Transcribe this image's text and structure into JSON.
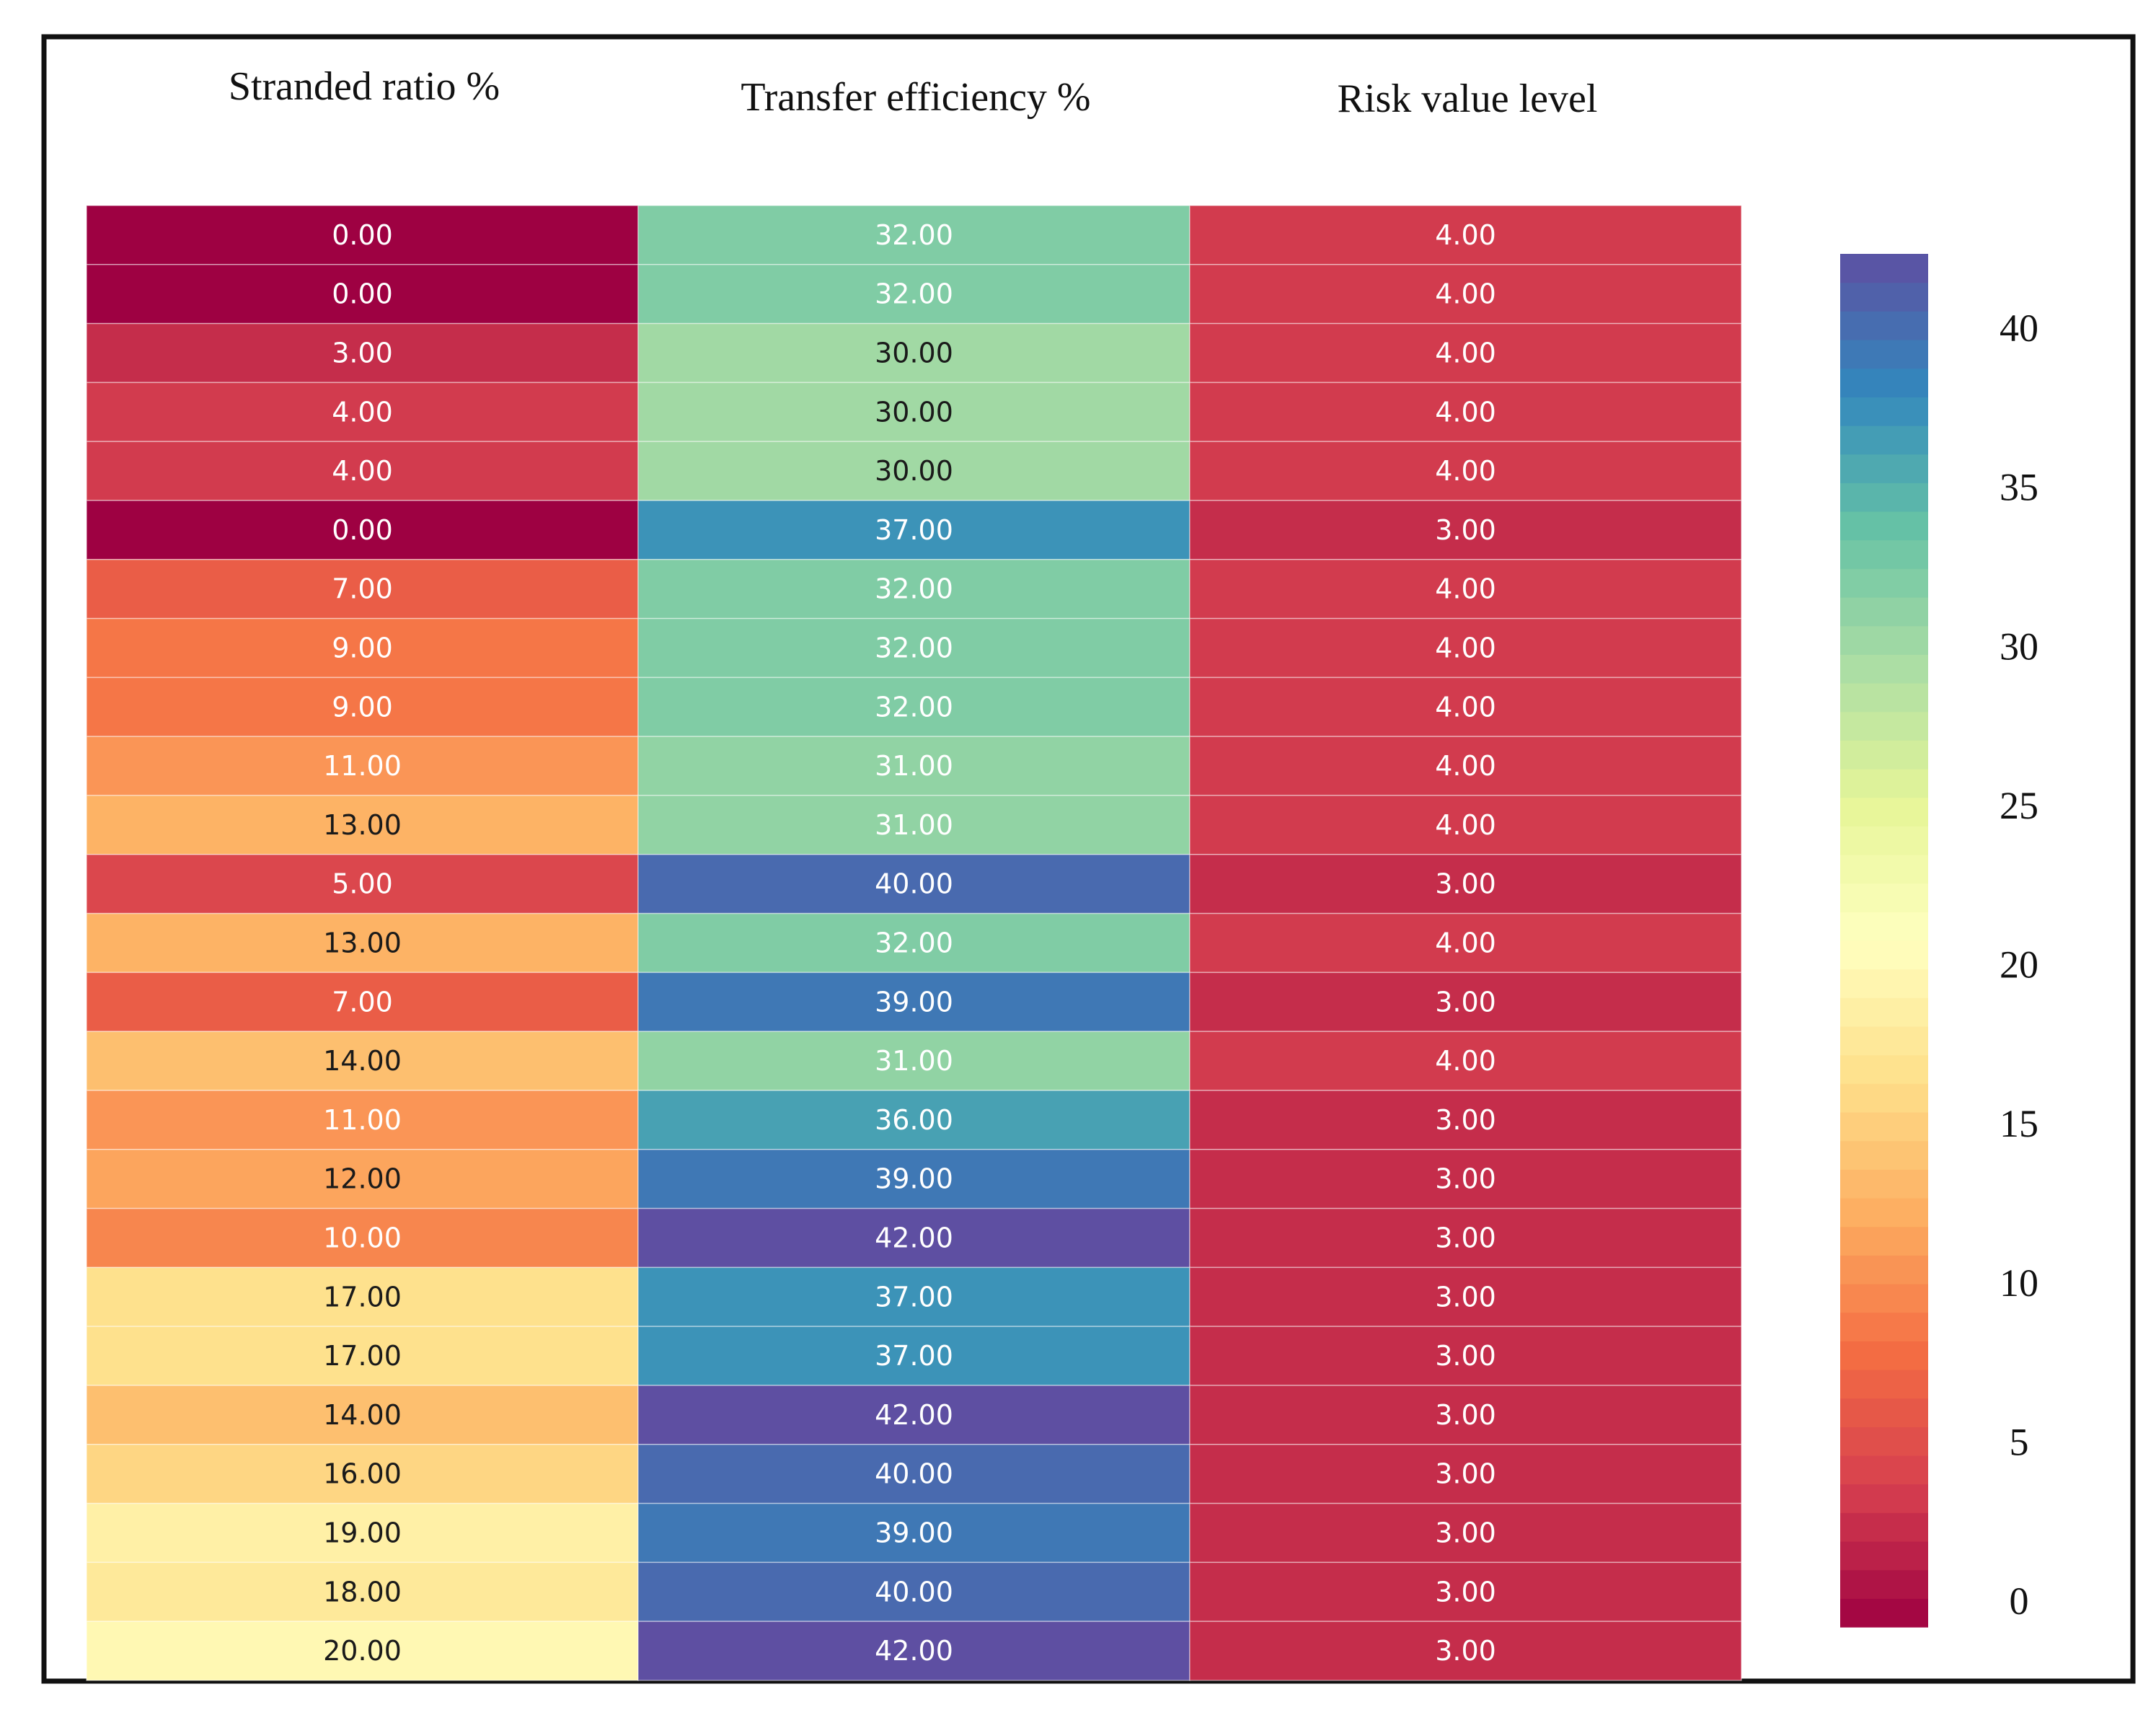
{
  "chart_data": {
    "type": "heatmap",
    "columns": [
      "Stranded ratio %",
      "Transfer efficiency %",
      "Risk value level"
    ],
    "rows": [
      [
        0,
        32,
        4
      ],
      [
        0,
        32,
        4
      ],
      [
        3,
        30,
        4
      ],
      [
        4,
        30,
        4
      ],
      [
        4,
        30,
        4
      ],
      [
        0,
        37,
        3
      ],
      [
        7,
        32,
        4
      ],
      [
        9,
        32,
        4
      ],
      [
        9,
        32,
        4
      ],
      [
        11,
        31,
        4
      ],
      [
        13,
        31,
        4
      ],
      [
        5,
        40,
        3
      ],
      [
        13,
        32,
        4
      ],
      [
        7,
        39,
        3
      ],
      [
        14,
        31,
        4
      ],
      [
        11,
        36,
        3
      ],
      [
        12,
        39,
        3
      ],
      [
        10,
        42,
        3
      ],
      [
        17,
        37,
        3
      ],
      [
        17,
        37,
        3
      ],
      [
        14,
        42,
        3
      ],
      [
        16,
        40,
        3
      ],
      [
        19,
        39,
        3
      ],
      [
        18,
        40,
        3
      ],
      [
        20,
        42,
        3
      ]
    ],
    "cell_labels": [
      [
        "0.00",
        "32.00",
        "4.00"
      ],
      [
        "0.00",
        "32.00",
        "4.00"
      ],
      [
        "3.00",
        "30.00",
        "4.00"
      ],
      [
        "4.00",
        "30.00",
        "4.00"
      ],
      [
        "4.00",
        "30.00",
        "4.00"
      ],
      [
        "0.00",
        "37.00",
        "3.00"
      ],
      [
        "7.00",
        "32.00",
        "4.00"
      ],
      [
        "9.00",
        "32.00",
        "4.00"
      ],
      [
        "9.00",
        "32.00",
        "4.00"
      ],
      [
        "11.00",
        "31.00",
        "4.00"
      ],
      [
        "13.00",
        "31.00",
        "4.00"
      ],
      [
        "5.00",
        "40.00",
        "3.00"
      ],
      [
        "13.00",
        "32.00",
        "4.00"
      ],
      [
        "7.00",
        "39.00",
        "3.00"
      ],
      [
        "14.00",
        "31.00",
        "4.00"
      ],
      [
        "11.00",
        "36.00",
        "3.00"
      ],
      [
        "12.00",
        "39.00",
        "3.00"
      ],
      [
        "10.00",
        "42.00",
        "3.00"
      ],
      [
        "17.00",
        "37.00",
        "3.00"
      ],
      [
        "17.00",
        "37.00",
        "3.00"
      ],
      [
        "14.00",
        "42.00",
        "3.00"
      ],
      [
        "16.00",
        "40.00",
        "3.00"
      ],
      [
        "19.00",
        "39.00",
        "3.00"
      ],
      [
        "18.00",
        "40.00",
        "3.00"
      ],
      [
        "20.00",
        "42.00",
        "3.00"
      ]
    ],
    "colorbar": {
      "min": 0,
      "max": 42,
      "ticks": [
        0,
        5,
        10,
        15,
        20,
        25,
        30,
        35,
        40
      ],
      "tick_labels": [
        "0",
        "5",
        "10",
        "15",
        "20",
        "25",
        "30",
        "35",
        "40"
      ],
      "colormap": "Spectral",
      "stops": [
        "#9e0142",
        "#d53e4f",
        "#f46d43",
        "#fdae61",
        "#fee08b",
        "#ffffbf",
        "#e6f598",
        "#abdda4",
        "#66c2a5",
        "#3288bd",
        "#5e4fa2"
      ]
    },
    "legend": "colorbar-right",
    "grid": false
  }
}
